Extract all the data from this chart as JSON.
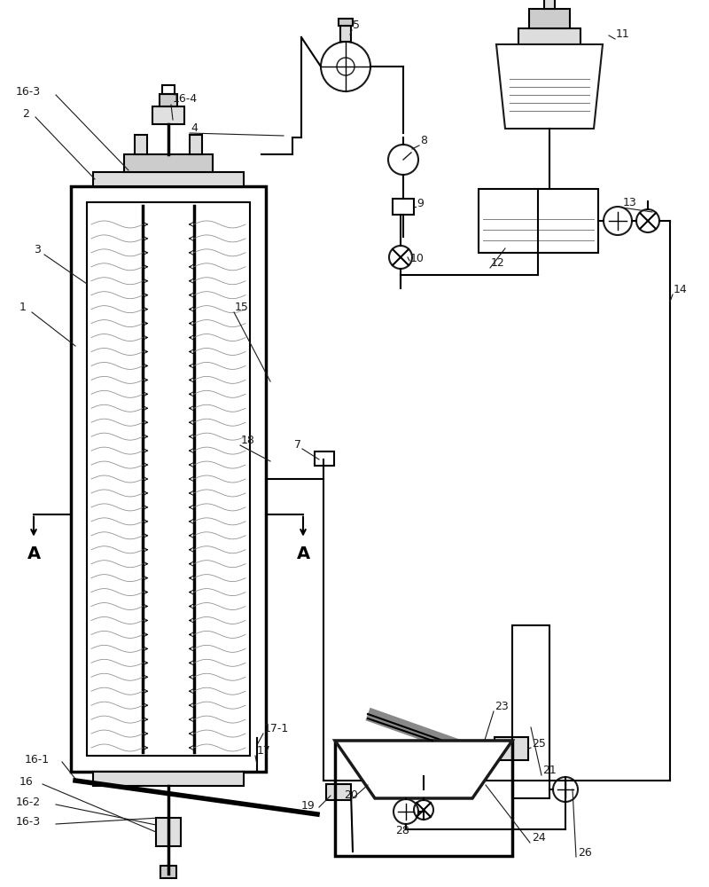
{
  "bg_color": "#ffffff",
  "line_color": "#1a1a1a",
  "fig_width": 8.0,
  "fig_height": 10.0,
  "dpi": 100
}
